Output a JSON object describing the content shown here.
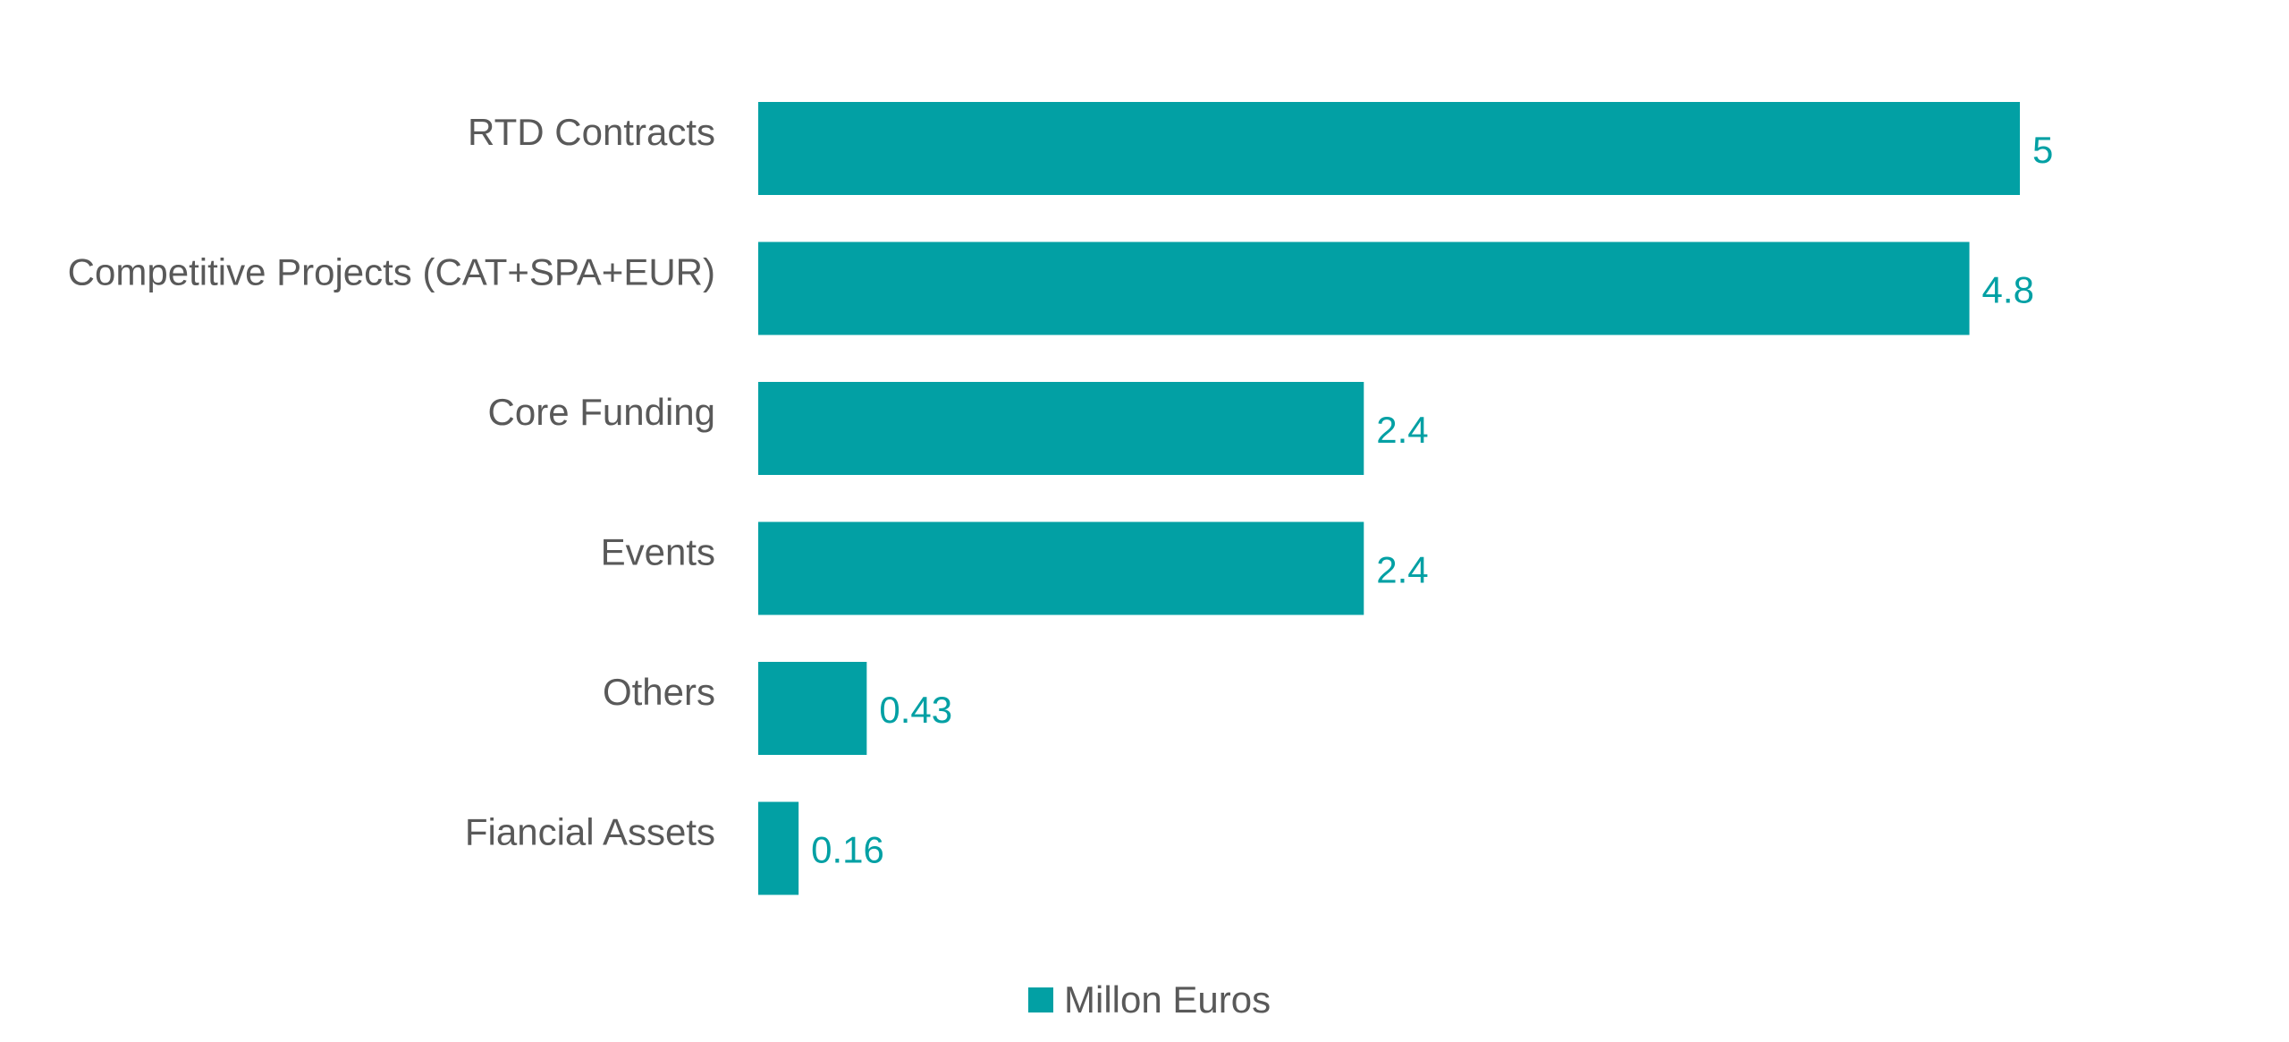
{
  "chart_data": {
    "type": "bar",
    "orientation": "horizontal",
    "categories": [
      "RTD Contracts",
      "Competitive Projects (CAT+SPA+EUR)",
      "Core Funding",
      "Events",
      "Others",
      "Fiancial Assets"
    ],
    "series": [
      {
        "name": "Millon Euros",
        "values": [
          5,
          4.8,
          2.4,
          2.4,
          0.43,
          0.16
        ],
        "value_labels": [
          "5",
          "4.8",
          "2.4",
          "2.4",
          "0.43",
          "0.16"
        ],
        "color": "#02A0A4"
      }
    ],
    "title": "",
    "xlabel": "",
    "ylabel": "",
    "xlim": [
      0,
      5
    ],
    "grid": false,
    "legend": "bottom"
  }
}
